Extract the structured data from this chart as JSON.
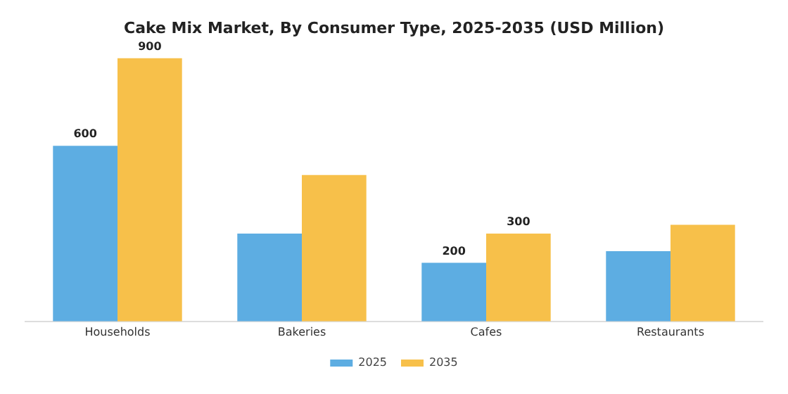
{
  "chart_data": {
    "type": "bar",
    "title": "Cake Mix Market, By Consumer Type, 2025-2035 (USD Million)",
    "categories": [
      "Households",
      "Bakeries",
      "Cafes",
      "Restaurants"
    ],
    "series": [
      {
        "name": "2025",
        "color": "#5dade2",
        "values": [
          600,
          300,
          200,
          240
        ],
        "value_labels": [
          "600",
          null,
          "200",
          null
        ]
      },
      {
        "name": "2035",
        "color": "#f7c04a",
        "values": [
          900,
          500,
          300,
          330
        ],
        "value_labels": [
          "900",
          null,
          "300",
          null
        ]
      }
    ],
    "ylim": [
      0,
      900
    ],
    "tick_labels": "x",
    "grid": false,
    "legend": "bottom"
  }
}
